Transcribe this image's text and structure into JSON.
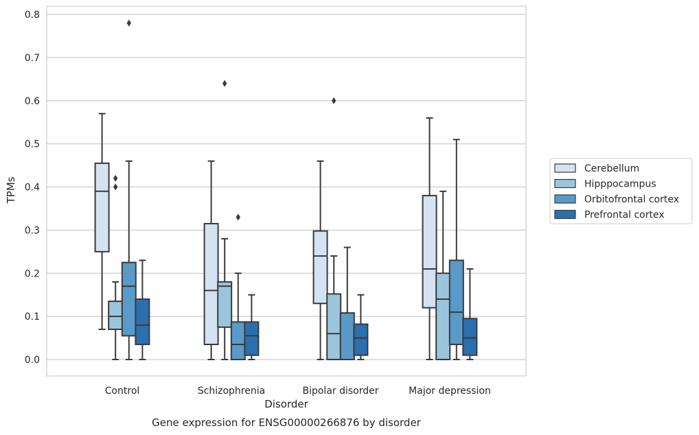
{
  "chart_data": {
    "type": "box",
    "title": "",
    "caption": "Gene expression for ENSG00000266876 by disorder",
    "xlabel": "Disorder",
    "ylabel": "TPMs",
    "ylim": [
      -0.04,
      0.82
    ],
    "yticks": [
      0.0,
      0.1,
      0.2,
      0.3,
      0.4,
      0.5,
      0.6,
      0.7,
      0.8
    ],
    "ytick_labels": [
      "0.0",
      "0.1",
      "0.2",
      "0.3",
      "0.4",
      "0.5",
      "0.6",
      "0.7",
      "0.8"
    ],
    "grid": "horizontal",
    "legend_position": "right, outside plot",
    "categories": [
      "Control",
      "Schizophrenia",
      "Bipolar disorder",
      "Major depression"
    ],
    "series": [
      {
        "name": "Cerebellum",
        "color": "#d4e2f2",
        "boxes": [
          {
            "whislo": 0.07,
            "q1": 0.25,
            "med": 0.39,
            "q3": 0.455,
            "whishi": 0.57,
            "fliers": []
          },
          {
            "whislo": 0.0,
            "q1": 0.035,
            "med": 0.16,
            "q3": 0.315,
            "whishi": 0.46,
            "fliers": []
          },
          {
            "whislo": 0.0,
            "q1": 0.13,
            "med": 0.24,
            "q3": 0.298,
            "whishi": 0.46,
            "fliers": []
          },
          {
            "whislo": 0.0,
            "q1": 0.12,
            "med": 0.21,
            "q3": 0.38,
            "whishi": 0.56,
            "fliers": []
          }
        ]
      },
      {
        "name": "Hipppocampus",
        "color": "#9ac5dd",
        "boxes": [
          {
            "whislo": 0.0,
            "q1": 0.07,
            "med": 0.1,
            "q3": 0.135,
            "whishi": 0.18,
            "fliers": [
              0.4,
              0.42
            ]
          },
          {
            "whislo": 0.0,
            "q1": 0.075,
            "med": 0.17,
            "q3": 0.18,
            "whishi": 0.28,
            "fliers": [
              0.64
            ]
          },
          {
            "whislo": 0.0,
            "q1": 0.0,
            "med": 0.06,
            "q3": 0.152,
            "whishi": 0.24,
            "fliers": [
              0.6
            ]
          },
          {
            "whislo": 0.0,
            "q1": 0.0,
            "med": 0.14,
            "q3": 0.2,
            "whishi": 0.39,
            "fliers": []
          }
        ]
      },
      {
        "name": "Orbitofrontal cortex",
        "color": "#5a9ac8",
        "boxes": [
          {
            "whislo": 0.0,
            "q1": 0.055,
            "med": 0.17,
            "q3": 0.225,
            "whishi": 0.46,
            "fliers": [
              0.78
            ]
          },
          {
            "whislo": 0.0,
            "q1": 0.0,
            "med": 0.035,
            "q3": 0.087,
            "whishi": 0.2,
            "fliers": [
              0.33
            ]
          },
          {
            "whislo": 0.0,
            "q1": 0.0,
            "med": 0.0,
            "q3": 0.108,
            "whishi": 0.26,
            "fliers": []
          },
          {
            "whislo": 0.0,
            "q1": 0.035,
            "med": 0.11,
            "q3": 0.23,
            "whishi": 0.51,
            "fliers": []
          }
        ]
      },
      {
        "name": "Prefrontal cortex",
        "color": "#2a6fae",
        "boxes": [
          {
            "whislo": 0.0,
            "q1": 0.035,
            "med": 0.08,
            "q3": 0.14,
            "whishi": 0.23,
            "fliers": []
          },
          {
            "whislo": 0.0,
            "q1": 0.01,
            "med": 0.055,
            "q3": 0.087,
            "whishi": 0.15,
            "fliers": []
          },
          {
            "whislo": 0.0,
            "q1": 0.01,
            "med": 0.05,
            "q3": 0.082,
            "whishi": 0.15,
            "fliers": []
          },
          {
            "whislo": 0.0,
            "q1": 0.01,
            "med": 0.05,
            "q3": 0.095,
            "whishi": 0.21,
            "fliers": []
          }
        ]
      }
    ]
  }
}
